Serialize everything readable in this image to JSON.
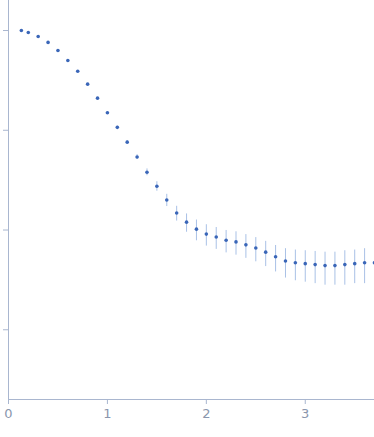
{
  "chart_data": {
    "type": "scatter",
    "x": [
      0.13,
      0.2,
      0.3,
      0.4,
      0.5,
      0.6,
      0.7,
      0.8,
      0.9,
      1.0,
      1.1,
      1.2,
      1.3,
      1.4,
      1.5,
      1.6,
      1.7,
      1.8,
      1.9,
      2.0,
      2.1,
      2.2,
      2.3,
      2.4,
      2.5,
      2.6,
      2.7,
      2.8,
      2.9,
      3.0,
      3.1,
      3.2,
      3.3,
      3.4,
      3.5,
      3.6,
      3.7
    ],
    "values": [
      1.0,
      0.955,
      0.87,
      0.76,
      0.63,
      0.5,
      0.39,
      0.29,
      0.21,
      0.15,
      0.107,
      0.076,
      0.054,
      0.038,
      0.0275,
      0.02,
      0.0148,
      0.012,
      0.0102,
      0.0091,
      0.0085,
      0.0079,
      0.0076,
      0.0071,
      0.0066,
      0.006,
      0.0054,
      0.0049,
      0.0047,
      0.0046,
      0.0045,
      0.0044,
      0.0044,
      0.0045,
      0.0046,
      0.0047,
      0.0047
    ],
    "errors": [
      0.01,
      0.005,
      0.004,
      0.004,
      0.003,
      0.003,
      0.003,
      0.003,
      0.003,
      0.003,
      0.003,
      0.003,
      0.003,
      0.003,
      0.003,
      0.0028,
      0.0025,
      0.0025,
      0.0024,
      0.0022,
      0.0021,
      0.002,
      0.002,
      0.0019,
      0.0018,
      0.0017,
      0.0016,
      0.0016,
      0.0016,
      0.0016,
      0.0016,
      0.0016,
      0.0016,
      0.0017,
      0.0017,
      0.0018,
      0.0018
    ],
    "color": "#3a66b8",
    "marker": "circle",
    "log": "y",
    "grid": false,
    "tick_labels": "x",
    "xlim": [
      0,
      3.7
    ],
    "xticks": [
      0,
      1,
      2,
      3
    ],
    "ylim": [
      0.0002,
      2
    ],
    "yticks": [
      0.001,
      0.01,
      0.1,
      1
    ]
  }
}
